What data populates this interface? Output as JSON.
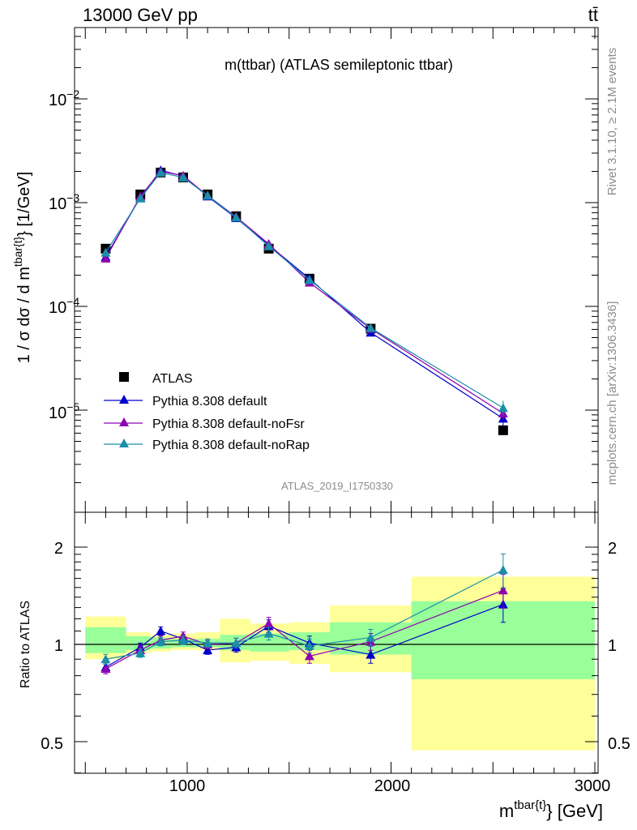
{
  "header": {
    "left": "13000 GeV pp",
    "right": "tt̄"
  },
  "side": {
    "top": "Rivet 3.1.10, ≥ 2.1M events",
    "bottom": "mcplots.cern.ch [arXiv:1306.3436]"
  },
  "main_title": "m(ttbar) (ATLAS semileptonic ttbar)",
  "watermark": "ATLAS_2019_I1750330",
  "colors": {
    "data": "#000000",
    "default": "#0000cc",
    "noFsr": "#8e00b0",
    "noRap": "#1a8fa8",
    "band_inner": "#99ff99",
    "band_outer": "#ffff99"
  },
  "chart_data": [
    {
      "type": "line",
      "panel": "main",
      "title": "m(ttbar) (ATLAS semileptonic ttbar)",
      "ylabel": "1 / σ dσ / d m^{tbar{t}} [1/GeV]",
      "yscale": "log",
      "ylim": [
        1e-06,
        0.05
      ],
      "xlim": [
        450,
        3050
      ],
      "ytick_labels": [
        "10^{-5}",
        "10^{-4}",
        "10^{-3}",
        "10^{-2}"
      ],
      "x": [
        600,
        770,
        870,
        980,
        1100,
        1240,
        1400,
        1600,
        1900,
        2550
      ],
      "series": [
        {
          "name": "ATLAS",
          "marker": "square",
          "values": [
            0.00036,
            0.0012,
            0.00195,
            0.00175,
            0.0012,
            0.00074,
            0.00036,
            0.000185,
            6.1e-05,
            6.4e-06
          ]
        },
        {
          "name": "Pythia 8.308 default",
          "marker": "triangle",
          "values": [
            0.0003,
            0.00112,
            0.00205,
            0.0018,
            0.00115,
            0.00071,
            0.00039,
            0.000185,
            5.6e-05,
            8.3e-06
          ]
        },
        {
          "name": "Pythia 8.308 default-noFsr",
          "marker": "triangle",
          "values": [
            0.00029,
            0.00115,
            0.002,
            0.00182,
            0.00117,
            0.00073,
            0.0004,
            0.00017,
            6.1e-05,
            9.3e-06
          ]
        },
        {
          "name": "Pythia 8.308 default-noRap",
          "marker": "triangle",
          "values": [
            0.00033,
            0.0011,
            0.00195,
            0.00175,
            0.00117,
            0.00072,
            0.00038,
            0.00018,
            6.2e-05,
            1.05e-05
          ]
        }
      ]
    },
    {
      "type": "line",
      "panel": "ratio",
      "ylabel": "Ratio to ATLAS",
      "xlabel": "m^{tbar{t}} [GeV]",
      "ylim": [
        0.35,
        2.3
      ],
      "xlim": [
        450,
        3050
      ],
      "ytick_labels": [
        "0.5",
        "1",
        "2"
      ],
      "xtick_labels": [
        "1000",
        "2000",
        "3000"
      ],
      "bins": [
        [
          500,
          700
        ],
        [
          700,
          820
        ],
        [
          820,
          920
        ],
        [
          920,
          1040
        ],
        [
          1040,
          1160
        ],
        [
          1160,
          1310
        ],
        [
          1310,
          1500
        ],
        [
          1500,
          1700
        ],
        [
          1700,
          2100
        ],
        [
          2100,
          3000
        ]
      ],
      "band_inner": [
        [
          0.94,
          1.13
        ],
        [
          0.96,
          1.06
        ],
        [
          0.97,
          1.05
        ],
        [
          0.98,
          1.04
        ],
        [
          0.98,
          1.04
        ],
        [
          0.96,
          1.07
        ],
        [
          0.95,
          1.08
        ],
        [
          0.96,
          1.09
        ],
        [
          0.93,
          1.17
        ],
        [
          0.78,
          1.36
        ]
      ],
      "band_outer": [
        [
          0.9,
          1.22
        ],
        [
          0.94,
          1.09
        ],
        [
          0.95,
          1.07
        ],
        [
          0.96,
          1.08
        ],
        [
          0.96,
          1.09
        ],
        [
          0.88,
          1.2
        ],
        [
          0.89,
          1.16
        ],
        [
          0.87,
          1.17
        ],
        [
          0.82,
          1.32
        ],
        [
          0.47,
          1.62
        ]
      ],
      "x": [
        600,
        770,
        870,
        980,
        1100,
        1240,
        1400,
        1600,
        1900,
        2550
      ],
      "series": [
        {
          "name": "Pythia 8.308 default",
          "values": [
            0.85,
            0.98,
            1.1,
            1.04,
            0.96,
            0.98,
            1.14,
            1.01,
            0.93,
            1.33
          ]
        },
        {
          "name": "Pythia 8.308 default-noFsr",
          "values": [
            0.84,
            0.96,
            1.03,
            1.06,
            1.0,
            1.01,
            1.16,
            0.92,
            1.02,
            1.47
          ]
        },
        {
          "name": "Pythia 8.308 default-noRap",
          "values": [
            0.9,
            0.94,
            1.02,
            1.03,
            1.01,
            1.01,
            1.08,
            0.99,
            1.05,
            1.7
          ]
        }
      ]
    }
  ]
}
